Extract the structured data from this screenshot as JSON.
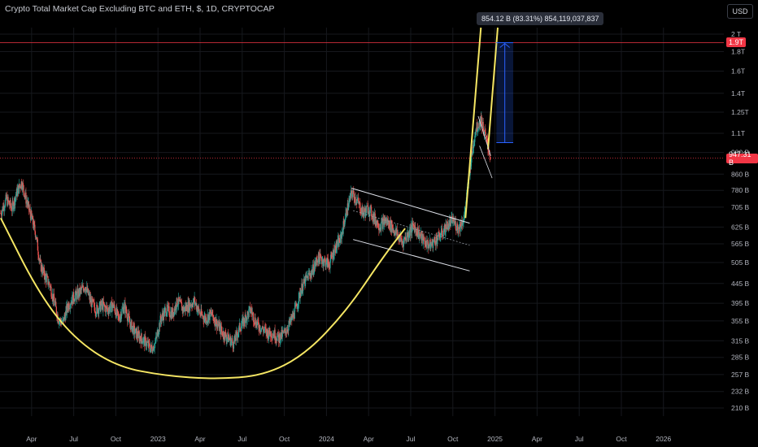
{
  "header": {
    "symbol_title": "Crypto Total Market Cap Excluding BTC and ETH, $, 1D, CRYPTOCAP",
    "currency_button": "USD"
  },
  "measure_tool": {
    "label": "854.12 B (83.31%) 854,119,037,837",
    "color": "#2962ff"
  },
  "price_markers": [
    {
      "label": "1.9T",
      "value": 1.9,
      "color": "#f23645"
    },
    {
      "label": "947.31 B",
      "value": 0.947,
      "color": "#f23645"
    }
  ],
  "chart_data": {
    "type": "candlestick",
    "scale": "log",
    "y_unit": "T",
    "y_ticks": [
      {
        "label": "2 T",
        "value": 2.0
      },
      {
        "label": "1.8T",
        "value": 1.8
      },
      {
        "label": "1.6T",
        "value": 1.6
      },
      {
        "label": "1.4T",
        "value": 1.4
      },
      {
        "label": "1.25T",
        "value": 1.25
      },
      {
        "label": "1.1T",
        "value": 1.1
      },
      {
        "label": "980 B",
        "value": 0.98
      },
      {
        "label": "860 B",
        "value": 0.86
      },
      {
        "label": "780 B",
        "value": 0.78
      },
      {
        "label": "705 B",
        "value": 0.705
      },
      {
        "label": "625 B",
        "value": 0.625
      },
      {
        "label": "565 B",
        "value": 0.565
      },
      {
        "label": "505 B",
        "value": 0.505
      },
      {
        "label": "445 B",
        "value": 0.445
      },
      {
        "label": "395 B",
        "value": 0.395
      },
      {
        "label": "355 B",
        "value": 0.355
      },
      {
        "label": "315 B",
        "value": 0.315
      },
      {
        "label": "285 B",
        "value": 0.285
      },
      {
        "label": "257 B",
        "value": 0.257
      },
      {
        "label": "232 B",
        "value": 0.232
      },
      {
        "label": "210 B",
        "value": 0.21
      }
    ],
    "x_ticks": [
      {
        "label": "Apr",
        "t": 3
      },
      {
        "label": "Jul",
        "t": 6
      },
      {
        "label": "Oct",
        "t": 9
      },
      {
        "label": "2023",
        "t": 12
      },
      {
        "label": "Apr",
        "t": 15
      },
      {
        "label": "Jul",
        "t": 18
      },
      {
        "label": "Oct",
        "t": 21
      },
      {
        "label": "2024",
        "t": 24
      },
      {
        "label": "Apr",
        "t": 27
      },
      {
        "label": "Jul",
        "t": 30
      },
      {
        "label": "Oct",
        "t": 33
      },
      {
        "label": "2025",
        "t": 36
      },
      {
        "label": "Apr",
        "t": 39
      },
      {
        "label": "Jul",
        "t": 42
      },
      {
        "label": "Oct",
        "t": 45
      },
      {
        "label": "2026",
        "t": 48
      }
    ],
    "x_range": [
      0.75,
      52.3
    ],
    "y_range": [
      0.2,
      2.08
    ],
    "price_path": [
      [
        0.8,
        0.68
      ],
      [
        1.2,
        0.74
      ],
      [
        1.6,
        0.7
      ],
      [
        2.0,
        0.78
      ],
      [
        2.3,
        0.82
      ],
      [
        2.6,
        0.74
      ],
      [
        3.0,
        0.66
      ],
      [
        3.3,
        0.6
      ],
      [
        3.6,
        0.5
      ],
      [
        3.9,
        0.47
      ],
      [
        4.3,
        0.44
      ],
      [
        4.6,
        0.4
      ],
      [
        4.9,
        0.36
      ],
      [
        5.2,
        0.35
      ],
      [
        5.6,
        0.39
      ],
      [
        6.0,
        0.41
      ],
      [
        6.4,
        0.42
      ],
      [
        6.8,
        0.44
      ],
      [
        7.2,
        0.4
      ],
      [
        7.6,
        0.38
      ],
      [
        8.0,
        0.39
      ],
      [
        8.4,
        0.38
      ],
      [
        8.8,
        0.39
      ],
      [
        9.2,
        0.36
      ],
      [
        9.6,
        0.39
      ],
      [
        10.0,
        0.35
      ],
      [
        10.4,
        0.33
      ],
      [
        10.8,
        0.32
      ],
      [
        11.2,
        0.31
      ],
      [
        11.5,
        0.3
      ],
      [
        11.8,
        0.31
      ],
      [
        12.2,
        0.36
      ],
      [
        12.6,
        0.38
      ],
      [
        13.0,
        0.37
      ],
      [
        13.4,
        0.4
      ],
      [
        13.8,
        0.38
      ],
      [
        14.2,
        0.39
      ],
      [
        14.6,
        0.4
      ],
      [
        15.0,
        0.37
      ],
      [
        15.4,
        0.36
      ],
      [
        15.8,
        0.37
      ],
      [
        16.2,
        0.35
      ],
      [
        16.6,
        0.33
      ],
      [
        17.0,
        0.32
      ],
      [
        17.4,
        0.31
      ],
      [
        17.8,
        0.34
      ],
      [
        18.2,
        0.36
      ],
      [
        18.6,
        0.38
      ],
      [
        19.0,
        0.35
      ],
      [
        19.4,
        0.34
      ],
      [
        19.8,
        0.33
      ],
      [
        20.2,
        0.33
      ],
      [
        20.6,
        0.32
      ],
      [
        21.0,
        0.33
      ],
      [
        21.4,
        0.35
      ],
      [
        21.8,
        0.38
      ],
      [
        22.2,
        0.43
      ],
      [
        22.6,
        0.46
      ],
      [
        23.0,
        0.48
      ],
      [
        23.4,
        0.52
      ],
      [
        23.8,
        0.51
      ],
      [
        24.2,
        0.5
      ],
      [
        24.6,
        0.55
      ],
      [
        25.0,
        0.58
      ],
      [
        25.4,
        0.68
      ],
      [
        25.8,
        0.77
      ],
      [
        26.2,
        0.73
      ],
      [
        26.6,
        0.68
      ],
      [
        27.0,
        0.7
      ],
      [
        27.4,
        0.66
      ],
      [
        27.8,
        0.63
      ],
      [
        28.2,
        0.65
      ],
      [
        28.6,
        0.63
      ],
      [
        29.0,
        0.6
      ],
      [
        29.4,
        0.57
      ],
      [
        29.8,
        0.6
      ],
      [
        30.2,
        0.63
      ],
      [
        30.6,
        0.6
      ],
      [
        31.0,
        0.57
      ],
      [
        31.4,
        0.56
      ],
      [
        31.8,
        0.58
      ],
      [
        32.2,
        0.6
      ],
      [
        32.6,
        0.63
      ],
      [
        33.0,
        0.65
      ],
      [
        33.4,
        0.62
      ],
      [
        33.8,
        0.66
      ],
      [
        34.2,
        0.88
      ],
      [
        34.6,
        1.12
      ],
      [
        35.0,
        1.2
      ],
      [
        35.4,
        1.05
      ],
      [
        35.7,
        0.95
      ]
    ],
    "annotations": {
      "cup_curve": [
        [
          0.8,
          0.66
        ],
        [
          3.5,
          0.42
        ],
        [
          6.0,
          0.32
        ],
        [
          9.0,
          0.27
        ],
        [
          12.5,
          0.255
        ],
        [
          16.0,
          0.25
        ],
        [
          19.5,
          0.255
        ],
        [
          22.5,
          0.29
        ],
        [
          25.5,
          0.38
        ],
        [
          28.0,
          0.52
        ],
        [
          29.6,
          0.62
        ]
      ],
      "channel_upper": [
        [
          25.8,
          0.79
        ],
        [
          34.2,
          0.64
        ]
      ],
      "channel_lower": [
        [
          25.9,
          0.58
        ],
        [
          34.2,
          0.48
        ]
      ],
      "channel_mid": [
        [
          25.9,
          0.69
        ],
        [
          34.2,
          0.56
        ]
      ],
      "breakout_line_1": [
        [
          33.9,
          0.66
        ],
        [
          35.0,
          2.08
        ]
      ],
      "breakout_line_2": [
        [
          35.5,
          1.0
        ],
        [
          36.2,
          2.08
        ]
      ],
      "wedge_upper": [
        [
          34.8,
          1.22
        ],
        [
          35.7,
          0.96
        ]
      ],
      "wedge_lower": [
        [
          34.9,
          1.02
        ],
        [
          35.8,
          0.84
        ]
      ],
      "measure_box": {
        "t0": 36.1,
        "t1": 37.3,
        "low": 1.04,
        "high": 1.9
      }
    }
  }
}
